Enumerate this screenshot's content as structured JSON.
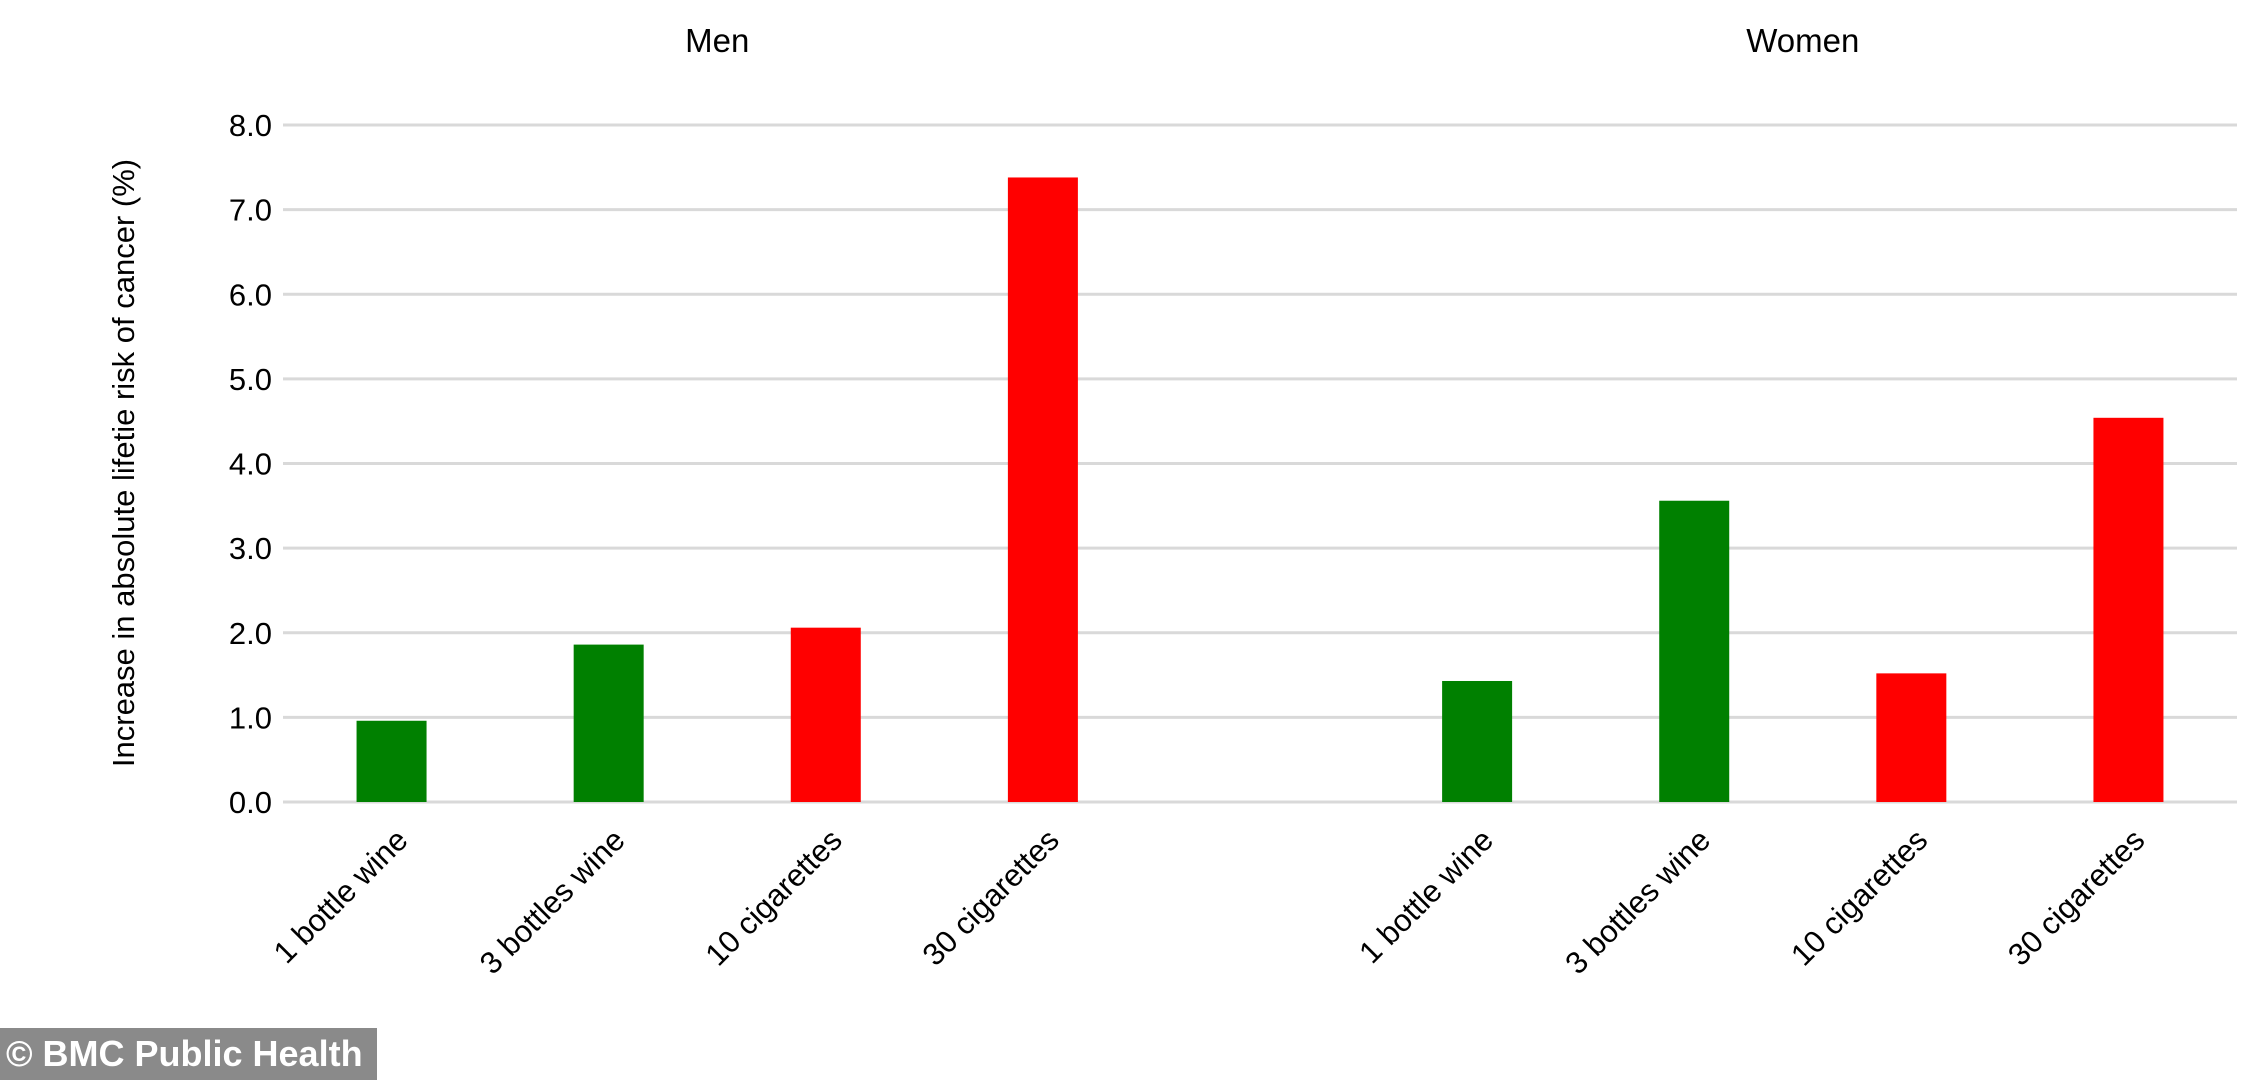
{
  "chart_data": {
    "type": "bar",
    "ylabel": "Increase in absolute lifetie risk of cancer (%)",
    "ylim": [
      0,
      8
    ],
    "yticks": [
      "0.0",
      "1.0",
      "2.0",
      "3.0",
      "4.0",
      "5.0",
      "6.0",
      "7.0",
      "8.0"
    ],
    "grid": true,
    "panels": [
      {
        "title": "Men",
        "categories": [
          "1 bottle wine",
          "3 bottles wine",
          "10 cigarettes",
          "30 cigarettes"
        ],
        "values": [
          0.96,
          1.86,
          2.06,
          7.38
        ]
      },
      {
        "title": "Women",
        "categories": [
          "1 bottle wine",
          "3 bottles wine",
          "10 cigarettes",
          "30 cigarettes"
        ],
        "values": [
          1.43,
          3.56,
          1.52,
          4.54
        ]
      }
    ],
    "bar_colors": [
      "#008000",
      "#008000",
      "#ff0000",
      "#ff0000"
    ],
    "grid_color": "#d9d9d9"
  },
  "watermark": "© BMC Public Health"
}
